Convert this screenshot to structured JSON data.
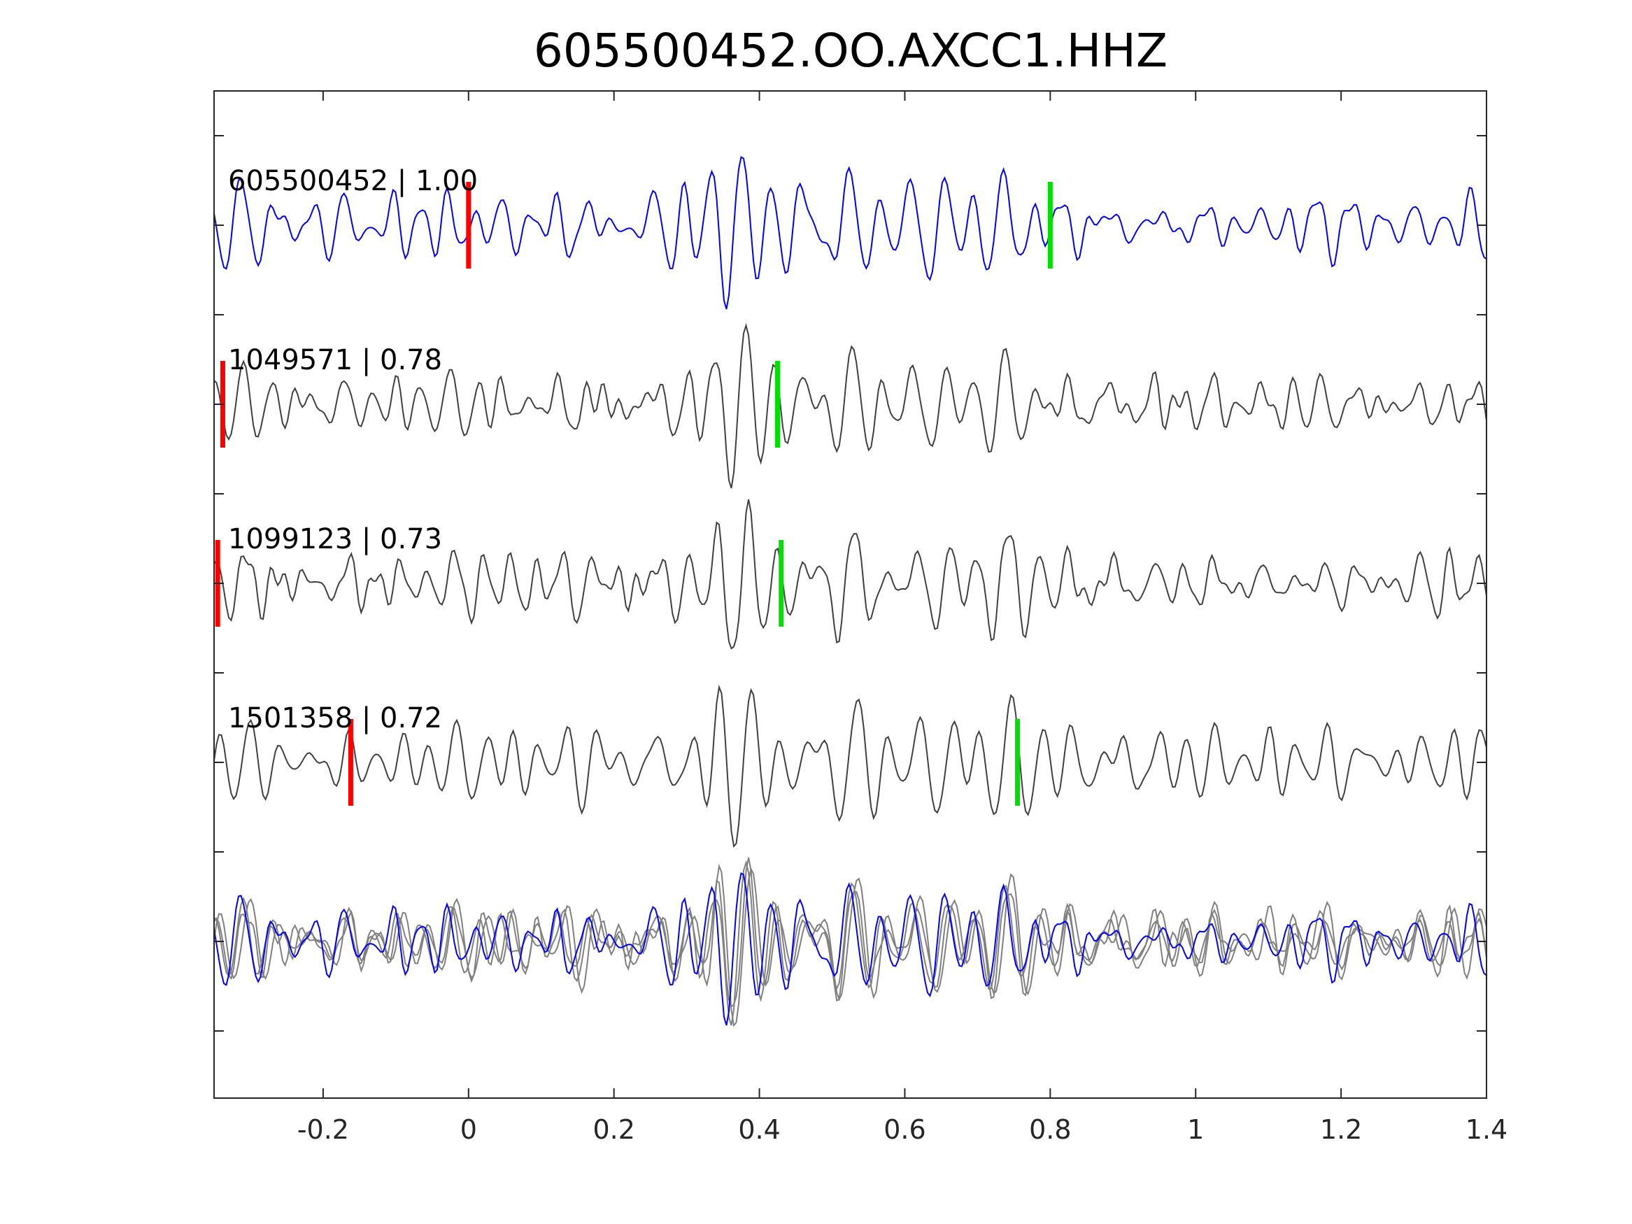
{
  "chart_data": {
    "type": "line",
    "title": "605500452.OO.AXCC1.HHZ",
    "xlabel": "",
    "ylabel": "",
    "xlim": [
      -0.35,
      1.4
    ],
    "x_ticks": [
      {
        "value": -0.2,
        "label": "-0.2"
      },
      {
        "value": 0,
        "label": "0"
      },
      {
        "value": 0.2,
        "label": "0.2"
      },
      {
        "value": 0.4,
        "label": "0.4"
      },
      {
        "value": 0.6,
        "label": "0.6"
      },
      {
        "value": 0.8,
        "label": "0.8"
      },
      {
        "value": 1,
        "label": "1"
      },
      {
        "value": 1.2,
        "label": "1.2"
      },
      {
        "value": 1.4,
        "label": "1.4"
      }
    ],
    "y_tick_count": 11,
    "y_tick_labels": [],
    "colors": {
      "master": "#0000ff",
      "trace": "#404040",
      "overlay": "#808080",
      "p_pick": "#ff0000",
      "s_pick": "#00e000"
    },
    "traces": [
      {
        "label": "605500452 | 1.00",
        "id": "605500452",
        "cc": 1.0,
        "p_pick": 0.0,
        "s_pick": 0.8,
        "color": "master",
        "seed": 11
      },
      {
        "label": "1049571 | 0.78",
        "id": "1049571",
        "cc": 0.78,
        "p_pick": -0.338,
        "s_pick": 0.425,
        "color": "trace",
        "seed": 23
      },
      {
        "label": "1099123 | 0.73",
        "id": "1099123",
        "cc": 0.73,
        "p_pick": -0.345,
        "s_pick": 0.43,
        "color": "trace",
        "seed": 37
      },
      {
        "label": "1501358 | 0.72",
        "id": "1501358",
        "cc": 0.72,
        "p_pick": -0.162,
        "s_pick": 0.755,
        "color": "trace",
        "seed": 53
      }
    ],
    "stack": {
      "description_none": "",
      "traces": [
        "605500452",
        "1049571",
        "1099123",
        "1501358"
      ]
    }
  }
}
